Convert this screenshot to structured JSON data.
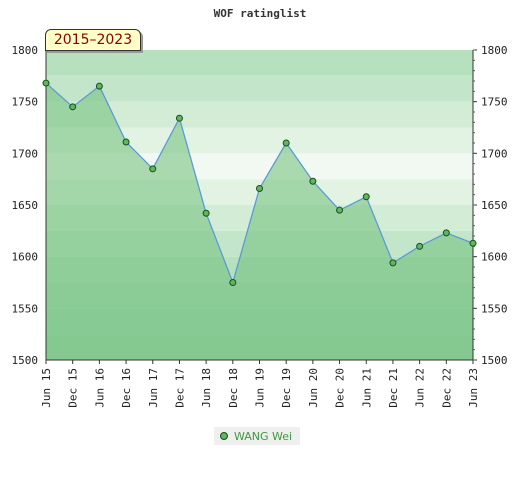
{
  "chart_data": {
    "type": "area",
    "title": "WOF ratinglist",
    "subtitle": "2015–2023",
    "ylim": [
      1500,
      1800
    ],
    "yticks": [
      1500,
      1550,
      1600,
      1650,
      1700,
      1750,
      1800
    ],
    "categories": [
      "Jun 15",
      "Dec 15",
      "Jun 16",
      "Dec 16",
      "Jun 17",
      "Dec 17",
      "Jun 18",
      "Dec 18",
      "Jun 19",
      "Dec 19",
      "Jun 20",
      "Dec 20",
      "Jun 21",
      "Dec 21",
      "Jun 22",
      "Dec 22",
      "Jun 23"
    ],
    "series": [
      {
        "name": "WANG Wei",
        "values": [
          1768,
          1745,
          1765,
          1711,
          1685,
          1734,
          1642,
          1575,
          1666,
          1710,
          1673,
          1645,
          1658,
          1594,
          1610,
          1623,
          1613
        ]
      }
    ],
    "grid": true,
    "legend": "bottom",
    "colors": {
      "line": "#5b9bd5",
      "fill": "#6fbf7a",
      "point": "#5cb85c"
    }
  }
}
